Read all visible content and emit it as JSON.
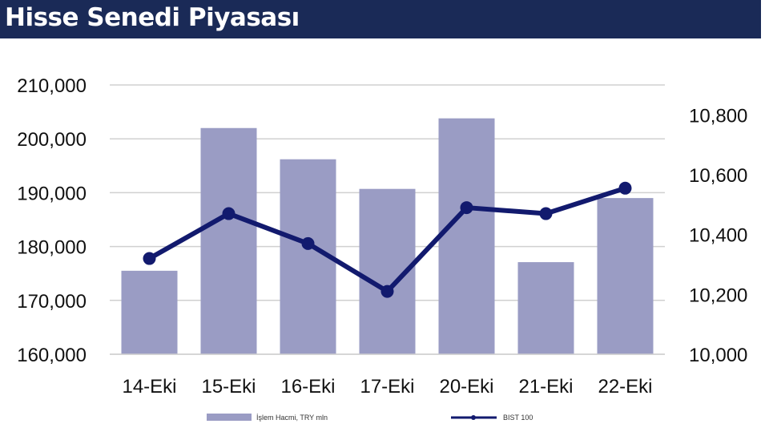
{
  "title": "Hisse Senedi Piyasası",
  "chart_data": {
    "type": "bar+line",
    "categories": [
      "14-Eki",
      "15-Eki",
      "16-Eki",
      "17-Eki",
      "20-Eki",
      "21-Eki",
      "22-Eki"
    ],
    "series": [
      {
        "name": "İşlem Hacmi, TRY mln",
        "type": "bar",
        "axis": "left",
        "color": "#9a9cc4",
        "values": [
          175500,
          202000,
          196200,
          190700,
          203800,
          177100,
          189000
        ]
      },
      {
        "name": "BIST 100",
        "type": "line",
        "axis": "right",
        "color": "#121a6e",
        "values": [
          10320,
          10470,
          10370,
          10210,
          10490,
          10470,
          10555
        ]
      }
    ],
    "y_left": {
      "min": 160000,
      "max": 210000,
      "ticks": [
        "160,000",
        "170,000",
        "180,000",
        "190,000",
        "200,000",
        "210,000"
      ]
    },
    "y_right": {
      "min": 10000,
      "max": 10900,
      "ticks": [
        "10,000",
        "10,200",
        "10,400",
        "10,600",
        "10,800"
      ]
    },
    "grid": true,
    "legend": "bottom"
  }
}
